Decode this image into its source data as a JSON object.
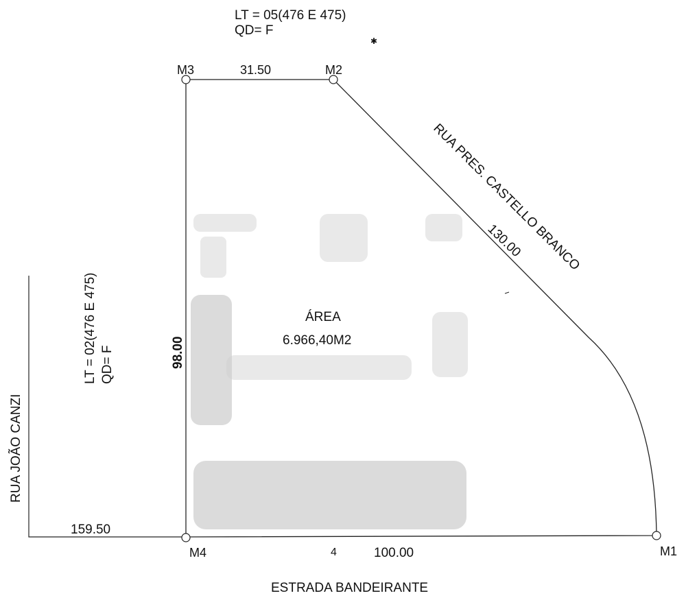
{
  "header": {
    "lot": "LT = 05(476 E 475)",
    "block": "QD= F"
  },
  "markers": {
    "m1": "M1",
    "m2": "M2",
    "m3": "M3",
    "m4": "M4"
  },
  "dimensions": {
    "top": "31.50",
    "diagonal": "130.00",
    "left": "98.00",
    "bottom": "100.00",
    "far_left": "159.50"
  },
  "streets": {
    "diagonal": "RUA PRES. CASTELLO BRANCO",
    "left": "RUA JOÃO CANZI",
    "bottom": "ESTRADA BANDEIRANTE"
  },
  "neighbor": {
    "lot": "LT = 02(476 E 475)",
    "block": "QD= F"
  },
  "area": {
    "label": "ÁREA",
    "value": "6.966,40M2"
  },
  "stray_mark": "4"
}
